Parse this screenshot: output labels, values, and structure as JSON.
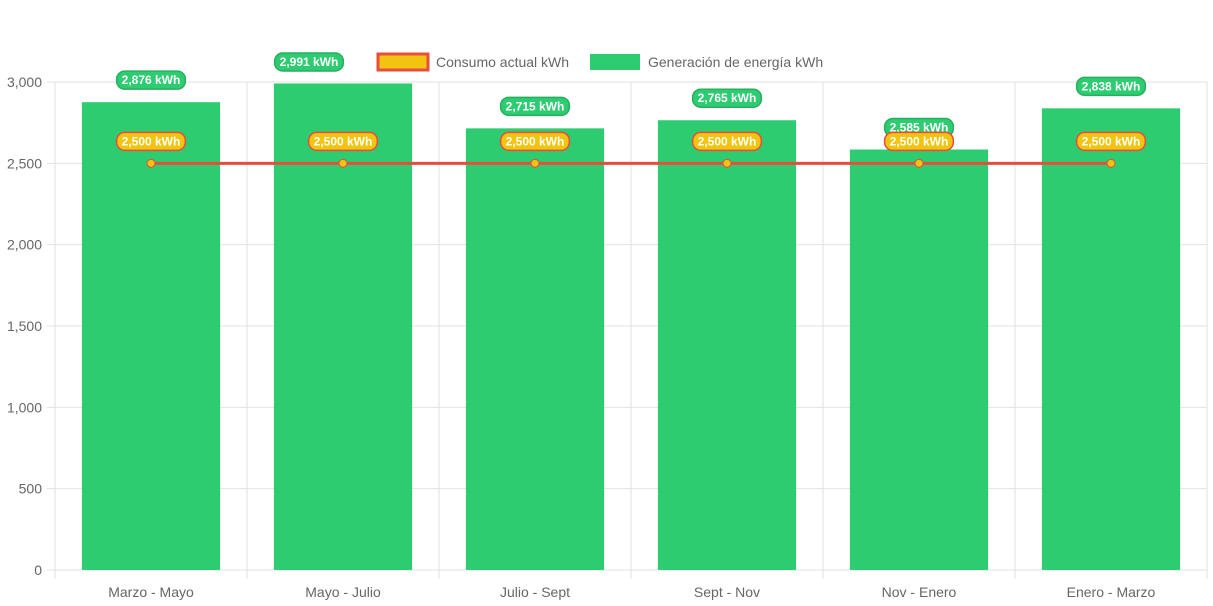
{
  "chart_data": {
    "type": "bar",
    "categories": [
      "Marzo - Mayo",
      "Mayo - Julio",
      "Julio - Sept",
      "Sept - Nov",
      "Nov - Enero",
      "Enero - Marzo"
    ],
    "series": [
      {
        "name": "Consumo actual kWh",
        "kind": "line",
        "values": [
          2500,
          2500,
          2500,
          2500,
          2500,
          2500
        ],
        "labels": [
          "2,500 kWh",
          "2,500 kWh",
          "2,500 kWh",
          "2,500 kWh",
          "2,500 kWh",
          "2,500 kWh"
        ],
        "color": "#e74c3c",
        "fill": "#f1c40f"
      },
      {
        "name": "Generación de energía kWh",
        "kind": "bar",
        "values": [
          2876,
          2991,
          2715,
          2765,
          2585,
          2838
        ],
        "labels": [
          "2,876 kWh",
          "2,991 kWh",
          "2,715 kWh",
          "2,765 kWh",
          "2,585 kWh",
          "2,838 kWh"
        ],
        "color": "#2ecc71"
      }
    ],
    "ylim": [
      0,
      3000
    ],
    "yticks": [
      0,
      500,
      1000,
      1500,
      2000,
      2500,
      3000
    ],
    "ytick_labels": [
      "0",
      "500",
      "1,000",
      "1,500",
      "2,000",
      "2,500",
      "3,000"
    ],
    "grid": true,
    "legend_position": "top"
  }
}
